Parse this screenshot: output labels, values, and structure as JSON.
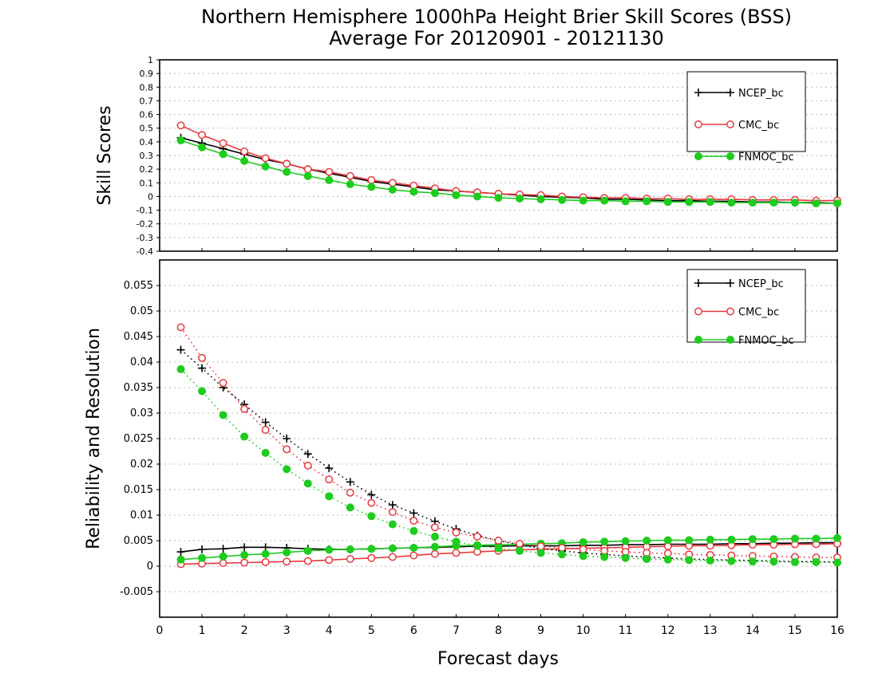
{
  "figure": {
    "title_line1": "Northern Hemisphere 1000hPa Height Brier Skill Scores (BSS)",
    "title_line2": "Average For 20120901 - 20121130",
    "xlabel": "Forecast days"
  },
  "chart_data": [
    {
      "type": "line",
      "panel": "top",
      "ylabel": "Skill Scores",
      "xlim": [
        0,
        16
      ],
      "ylim": [
        -0.4,
        1
      ],
      "x_ticks": [
        0,
        1,
        2,
        3,
        4,
        5,
        6,
        7,
        8,
        9,
        10,
        11,
        12,
        13,
        14,
        15,
        16
      ],
      "y_ticks": [
        -0.4,
        -0.3,
        -0.2,
        -0.1,
        0,
        0.1,
        0.2,
        0.3,
        0.4,
        0.5,
        0.6,
        0.7,
        0.8,
        0.9,
        1
      ],
      "y_tick_labels": [
        "-0.4",
        "-0.3",
        "-0.2",
        "-0.1",
        "0",
        "0.1",
        "0.2",
        "0.3",
        "0.4",
        "0.5",
        "0.6",
        "0.7",
        "0.8",
        "0.9",
        "1"
      ],
      "grid": true,
      "legend_position": "top-right",
      "x": [
        0.5,
        1,
        1.5,
        2,
        2.5,
        3,
        3.5,
        4,
        4.5,
        5,
        5.5,
        6,
        6.5,
        7,
        7.5,
        8,
        8.5,
        9,
        9.5,
        10,
        10.5,
        11,
        11.5,
        12,
        12.5,
        13,
        13.5,
        14,
        14.5,
        15,
        15.5,
        16
      ],
      "series": [
        {
          "name": "NCEP_bc",
          "color": "#000000",
          "marker": "plus",
          "values": [
            0.43,
            0.39,
            0.35,
            0.31,
            0.27,
            0.24,
            0.2,
            0.17,
            0.14,
            0.11,
            0.09,
            0.07,
            0.05,
            0.04,
            0.03,
            0.02,
            0.01,
            0.0,
            -0.005,
            -0.01,
            -0.02,
            -0.02,
            -0.025,
            -0.03,
            -0.03,
            -0.035,
            -0.035,
            -0.04,
            -0.04,
            -0.045,
            -0.045,
            -0.05
          ]
        },
        {
          "name": "CMC_bc",
          "color": "#e8383d",
          "marker": "open-circle",
          "values": [
            0.52,
            0.45,
            0.39,
            0.33,
            0.28,
            0.24,
            0.2,
            0.18,
            0.15,
            0.12,
            0.1,
            0.08,
            0.06,
            0.04,
            0.03,
            0.02,
            0.015,
            0.01,
            0.0,
            -0.005,
            -0.01,
            -0.01,
            -0.015,
            -0.015,
            -0.02,
            -0.02,
            -0.02,
            -0.025,
            -0.025,
            -0.025,
            -0.03,
            -0.03
          ]
        },
        {
          "name": "FNMOC_bc",
          "color": "#1dcc1d",
          "marker": "filled-circle",
          "values": [
            0.41,
            0.36,
            0.31,
            0.26,
            0.22,
            0.18,
            0.15,
            0.12,
            0.09,
            0.07,
            0.05,
            0.035,
            0.025,
            0.01,
            0.0,
            -0.01,
            -0.015,
            -0.02,
            -0.025,
            -0.03,
            -0.03,
            -0.035,
            -0.035,
            -0.04,
            -0.04,
            -0.04,
            -0.045,
            -0.045,
            -0.045,
            -0.045,
            -0.05,
            -0.05
          ]
        }
      ]
    },
    {
      "type": "line",
      "panel": "bottom",
      "ylabel": "Reliability and Resolution",
      "xlim": [
        0,
        16
      ],
      "ylim": [
        -0.01,
        0.06
      ],
      "x_ticks": [
        0,
        1,
        2,
        3,
        4,
        5,
        6,
        7,
        8,
        9,
        10,
        11,
        12,
        13,
        14,
        15,
        16
      ],
      "y_ticks": [
        -0.005,
        0,
        0.005,
        0.01,
        0.015,
        0.02,
        0.025,
        0.03,
        0.035,
        0.04,
        0.045,
        0.05,
        0.055
      ],
      "y_tick_labels": [
        "-0.005",
        "0",
        "0.005",
        "0.01",
        "0.015",
        "0.02",
        "0.025",
        "0.03",
        "0.035",
        "0.04",
        "0.045",
        "0.05",
        "0.055"
      ],
      "grid": true,
      "legend_position": "top-right",
      "x": [
        0.5,
        1,
        1.5,
        2,
        2.5,
        3,
        3.5,
        4,
        4.5,
        5,
        5.5,
        6,
        6.5,
        7,
        7.5,
        8,
        8.5,
        9,
        9.5,
        10,
        10.5,
        11,
        11.5,
        12,
        12.5,
        13,
        13.5,
        14,
        14.5,
        15,
        15.5,
        16
      ],
      "series": [
        {
          "name": "NCEP_bc",
          "legend": true,
          "line_style": "solid",
          "color": "#000000",
          "marker": "plus",
          "values": [
            0.0028,
            0.0033,
            0.0034,
            0.0037,
            0.0037,
            0.0036,
            0.0034,
            0.0033,
            0.0033,
            0.0034,
            0.0035,
            0.0036,
            0.0037,
            0.0038,
            0.0039,
            0.0039,
            0.004,
            0.004,
            0.004,
            0.0041,
            0.0041,
            0.0042,
            0.0042,
            0.0043,
            0.0043,
            0.0043,
            0.0044,
            0.0044,
            0.0045,
            0.0045,
            0.0046,
            0.0046
          ]
        },
        {
          "name": "CMC_bc",
          "legend": true,
          "line_style": "solid",
          "color": "#e8383d",
          "marker": "open-circle",
          "values": [
            0.0004,
            0.0005,
            0.0006,
            0.0007,
            0.0008,
            0.0009,
            0.001,
            0.0012,
            0.0014,
            0.0016,
            0.0018,
            0.0021,
            0.0024,
            0.0026,
            0.0028,
            0.003,
            0.0032,
            0.0033,
            0.0034,
            0.0035,
            0.0036,
            0.0037,
            0.0038,
            0.0039,
            0.004,
            0.004,
            0.0041,
            0.0042,
            0.0042,
            0.0043,
            0.0043,
            0.0044
          ]
        },
        {
          "name": "FNMOC_bc",
          "legend": true,
          "line_style": "solid",
          "color": "#1dcc1d",
          "marker": "filled-circle",
          "values": [
            0.0013,
            0.0016,
            0.0019,
            0.0022,
            0.0024,
            0.0027,
            0.003,
            0.0032,
            0.0033,
            0.0034,
            0.0035,
            0.0036,
            0.0038,
            0.004,
            0.0041,
            0.0042,
            0.0043,
            0.0044,
            0.0045,
            0.0047,
            0.0048,
            0.0049,
            0.005,
            0.0051,
            0.0051,
            0.0052,
            0.0052,
            0.0053,
            0.0053,
            0.0054,
            0.0054,
            0.0055
          ]
        },
        {
          "name": "NCEP_bc",
          "legend": false,
          "line_style": "dotted",
          "color": "#000000",
          "marker": "plus",
          "values": [
            0.0424,
            0.0388,
            0.035,
            0.0317,
            0.0282,
            0.025,
            0.022,
            0.0192,
            0.0165,
            0.014,
            0.012,
            0.0104,
            0.0088,
            0.0073,
            0.006,
            0.005,
            0.0042,
            0.0035,
            0.003,
            0.0026,
            0.0023,
            0.002,
            0.0018,
            0.0016,
            0.0014,
            0.0013,
            0.0012,
            0.0011,
            0.001,
            0.0009,
            0.0009,
            0.0008
          ]
        },
        {
          "name": "CMC_bc",
          "legend": false,
          "line_style": "dotted",
          "color": "#e8383d",
          "marker": "open-circle",
          "values": [
            0.0468,
            0.0408,
            0.0359,
            0.0308,
            0.0267,
            0.0229,
            0.0197,
            0.017,
            0.0144,
            0.0124,
            0.0106,
            0.0089,
            0.0076,
            0.0066,
            0.0058,
            0.005,
            0.0044,
            0.0039,
            0.0036,
            0.0033,
            0.003,
            0.0028,
            0.0026,
            0.0025,
            0.0023,
            0.0022,
            0.0021,
            0.002,
            0.0019,
            0.0018,
            0.0017,
            0.0017
          ]
        },
        {
          "name": "FNMOC_bc",
          "legend": false,
          "line_style": "dotted",
          "color": "#1dcc1d",
          "marker": "filled-circle",
          "values": [
            0.0386,
            0.0343,
            0.0296,
            0.0254,
            0.0222,
            0.019,
            0.0162,
            0.0137,
            0.0115,
            0.0098,
            0.0082,
            0.0069,
            0.0058,
            0.0048,
            0.004,
            0.0035,
            0.003,
            0.0026,
            0.0023,
            0.002,
            0.0018,
            0.0016,
            0.0014,
            0.0013,
            0.0012,
            0.0011,
            0.001,
            0.0009,
            0.0009,
            0.0008,
            0.0008,
            0.0007
          ]
        }
      ]
    }
  ]
}
